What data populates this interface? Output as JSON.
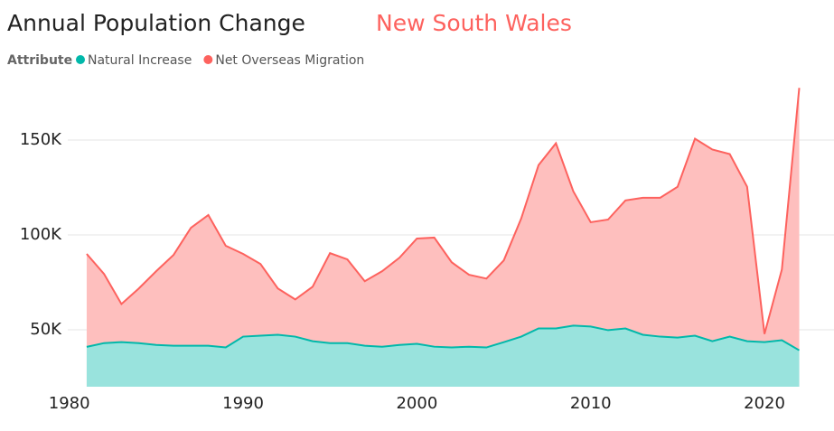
{
  "chart_data": {
    "type": "area",
    "title": "Annual Population Change",
    "subtitle": "New South Wales",
    "legend_title": "Attribute",
    "x": [
      1981,
      1982,
      1983,
      1984,
      1985,
      1986,
      1987,
      1988,
      1989,
      1990,
      1991,
      1992,
      1993,
      1994,
      1995,
      1996,
      1997,
      1998,
      1999,
      2000,
      2001,
      2002,
      2003,
      2004,
      2005,
      2006,
      2007,
      2008,
      2009,
      2010,
      2011,
      2012,
      2013,
      2014,
      2015,
      2016,
      2017,
      2018,
      2019,
      2020,
      2021,
      2022
    ],
    "series": [
      {
        "name": "Net Overseas Migration",
        "color": "#fd625e",
        "fill": "#febfbe",
        "values": [
          90000,
          79400,
          63600,
          71800,
          80900,
          89500,
          103800,
          110500,
          94300,
          90000,
          84700,
          71800,
          66000,
          72700,
          90400,
          87100,
          75600,
          80900,
          88000,
          98100,
          98600,
          85600,
          79000,
          77000,
          86600,
          108600,
          136800,
          148300,
          123000,
          106700,
          108100,
          118200,
          119600,
          119600,
          125400,
          150700,
          145000,
          142600,
          125400,
          47800,
          81800,
          177500
        ]
      },
      {
        "name": "Natural Increase",
        "color": "#01b8aa",
        "fill": "#99e3dd",
        "values": [
          41000,
          43000,
          43500,
          43000,
          42000,
          41600,
          41600,
          41600,
          40700,
          46400,
          46900,
          47400,
          46400,
          44000,
          43000,
          43000,
          41600,
          41100,
          42000,
          42600,
          41100,
          40700,
          41100,
          40700,
          43500,
          46400,
          50700,
          50700,
          52200,
          51700,
          49800,
          50700,
          47400,
          46400,
          45900,
          46900,
          44000,
          46400,
          44000,
          43500,
          44500,
          39200
        ]
      }
    ],
    "legend_order": [
      1,
      0
    ],
    "xlim": [
      1977,
      2024
    ],
    "xticks": [
      1980,
      1990,
      2000,
      2010,
      2020
    ],
    "ylim": [
      20000,
      180000
    ],
    "yticks": [
      {
        "value": 50000,
        "label": "50K"
      },
      {
        "value": 100000,
        "label": "100K"
      },
      {
        "value": 150000,
        "label": "150K"
      }
    ],
    "grid": true
  }
}
